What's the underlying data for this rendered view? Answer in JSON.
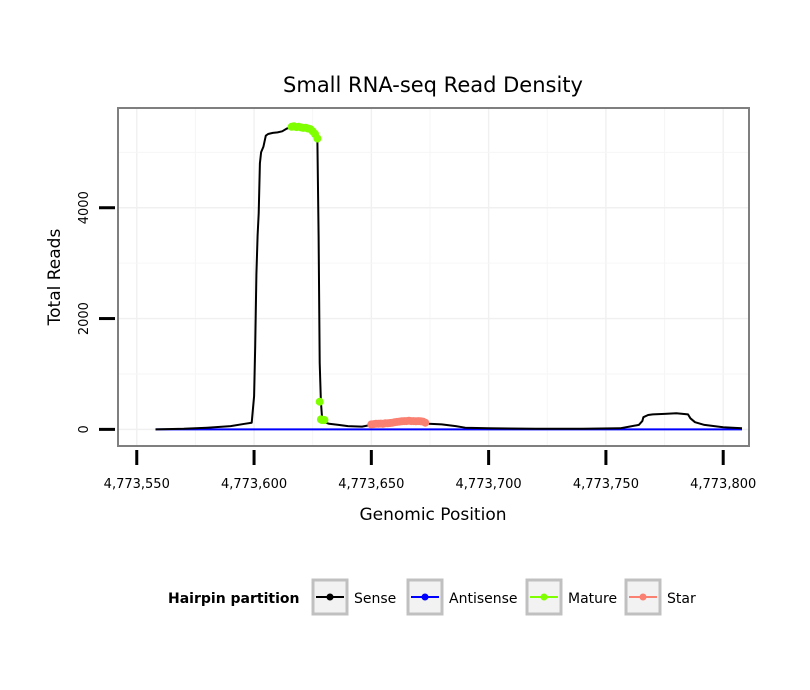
{
  "chart_data": {
    "type": "line",
    "title": "Small RNA-seq Read Density",
    "xlabel": "Genomic Position",
    "ylabel": "Total Reads",
    "xlim": [
      4773542,
      4773811
    ],
    "ylim": [
      -300,
      5800
    ],
    "x_ticks": [
      4773550,
      4773600,
      4773650,
      4773700,
      4773750,
      4773800
    ],
    "x_tick_labels": [
      "4,773,550",
      "4,773,600",
      "4,773,650",
      "4,773,700",
      "4,773,750",
      "4,773,800"
    ],
    "y_ticks": [
      0,
      2000,
      4000
    ],
    "y_tick_labels": [
      "0",
      "2000",
      "4000"
    ],
    "grid": true,
    "legend": {
      "title": "Hairpin partition",
      "position": "bottom",
      "items": [
        {
          "name": "Sense",
          "color": "#000000"
        },
        {
          "name": "Antisense",
          "color": "#0000ff"
        },
        {
          "name": "Mature",
          "color": "#7fff00"
        },
        {
          "name": "Star",
          "color": "#fa8072"
        }
      ]
    },
    "series": [
      {
        "name": "Sense",
        "color": "#000000",
        "kind": "line",
        "x": [
          4773558,
          4773570,
          4773580,
          4773590,
          4773596,
          4773599,
          4773600,
          4773600.5,
          4773601,
          4773601.5,
          4773602,
          4773602.5,
          4773603,
          4773604,
          4773605,
          4773606,
          4773608,
          4773610,
          4773612,
          4773614,
          4773616,
          4773618,
          4773620,
          4773622,
          4773624,
          4773626,
          4773627,
          4773627.5,
          4773628,
          4773628.5,
          4773629,
          4773630,
          4773632,
          4773636,
          4773640,
          4773646,
          4773650,
          4773660,
          4773670,
          4773680,
          4773686,
          4773690,
          4773700,
          4773720,
          4773740,
          4773756,
          4773760,
          4773764,
          4773765.5,
          4773766,
          4773768,
          4773770,
          4773775,
          4773780,
          4773785,
          4773786,
          4773788,
          4773792,
          4773800,
          4773808
        ],
        "values": [
          0,
          10,
          30,
          60,
          100,
          120,
          600,
          1500,
          2800,
          3500,
          3900,
          4800,
          5000,
          5100,
          5300,
          5330,
          5350,
          5360,
          5380,
          5430,
          5450,
          5460,
          5450,
          5440,
          5420,
          5380,
          5200,
          3500,
          1200,
          500,
          200,
          130,
          100,
          80,
          60,
          50,
          80,
          100,
          110,
          90,
          60,
          30,
          20,
          10,
          10,
          20,
          50,
          80,
          150,
          220,
          260,
          270,
          280,
          290,
          270,
          200,
          130,
          80,
          40,
          20
        ]
      },
      {
        "name": "Antisense",
        "color": "#0000ff",
        "kind": "line",
        "x": [
          4773558,
          4773808
        ],
        "values": [
          0,
          0
        ]
      },
      {
        "name": "Mature",
        "color": "#7fff00",
        "kind": "points",
        "x": [
          4773616,
          4773617,
          4773618,
          4773619,
          4773620,
          4773621,
          4773622,
          4773623,
          4773624,
          4773625,
          4773626,
          4773627,
          4773628,
          4773628.5,
          4773629,
          4773630
        ],
        "values": [
          5460,
          5470,
          5455,
          5460,
          5450,
          5440,
          5445,
          5430,
          5420,
          5380,
          5330,
          5250,
          500,
          180,
          170,
          170
        ]
      },
      {
        "name": "Star",
        "color": "#fa8072",
        "kind": "points",
        "x": [
          4773650,
          4773651,
          4773652,
          4773653,
          4773654,
          4773655,
          4773656,
          4773657,
          4773658,
          4773659,
          4773660,
          4773661,
          4773662,
          4773663,
          4773664,
          4773665,
          4773666,
          4773667,
          4773668,
          4773669,
          4773670,
          4773671,
          4773672,
          4773673
        ],
        "values": [
          90,
          95,
          100,
          100,
          105,
          100,
          110,
          110,
          115,
          120,
          130,
          135,
          140,
          145,
          150,
          150,
          155,
          150,
          150,
          145,
          150,
          145,
          140,
          120
        ]
      }
    ]
  }
}
